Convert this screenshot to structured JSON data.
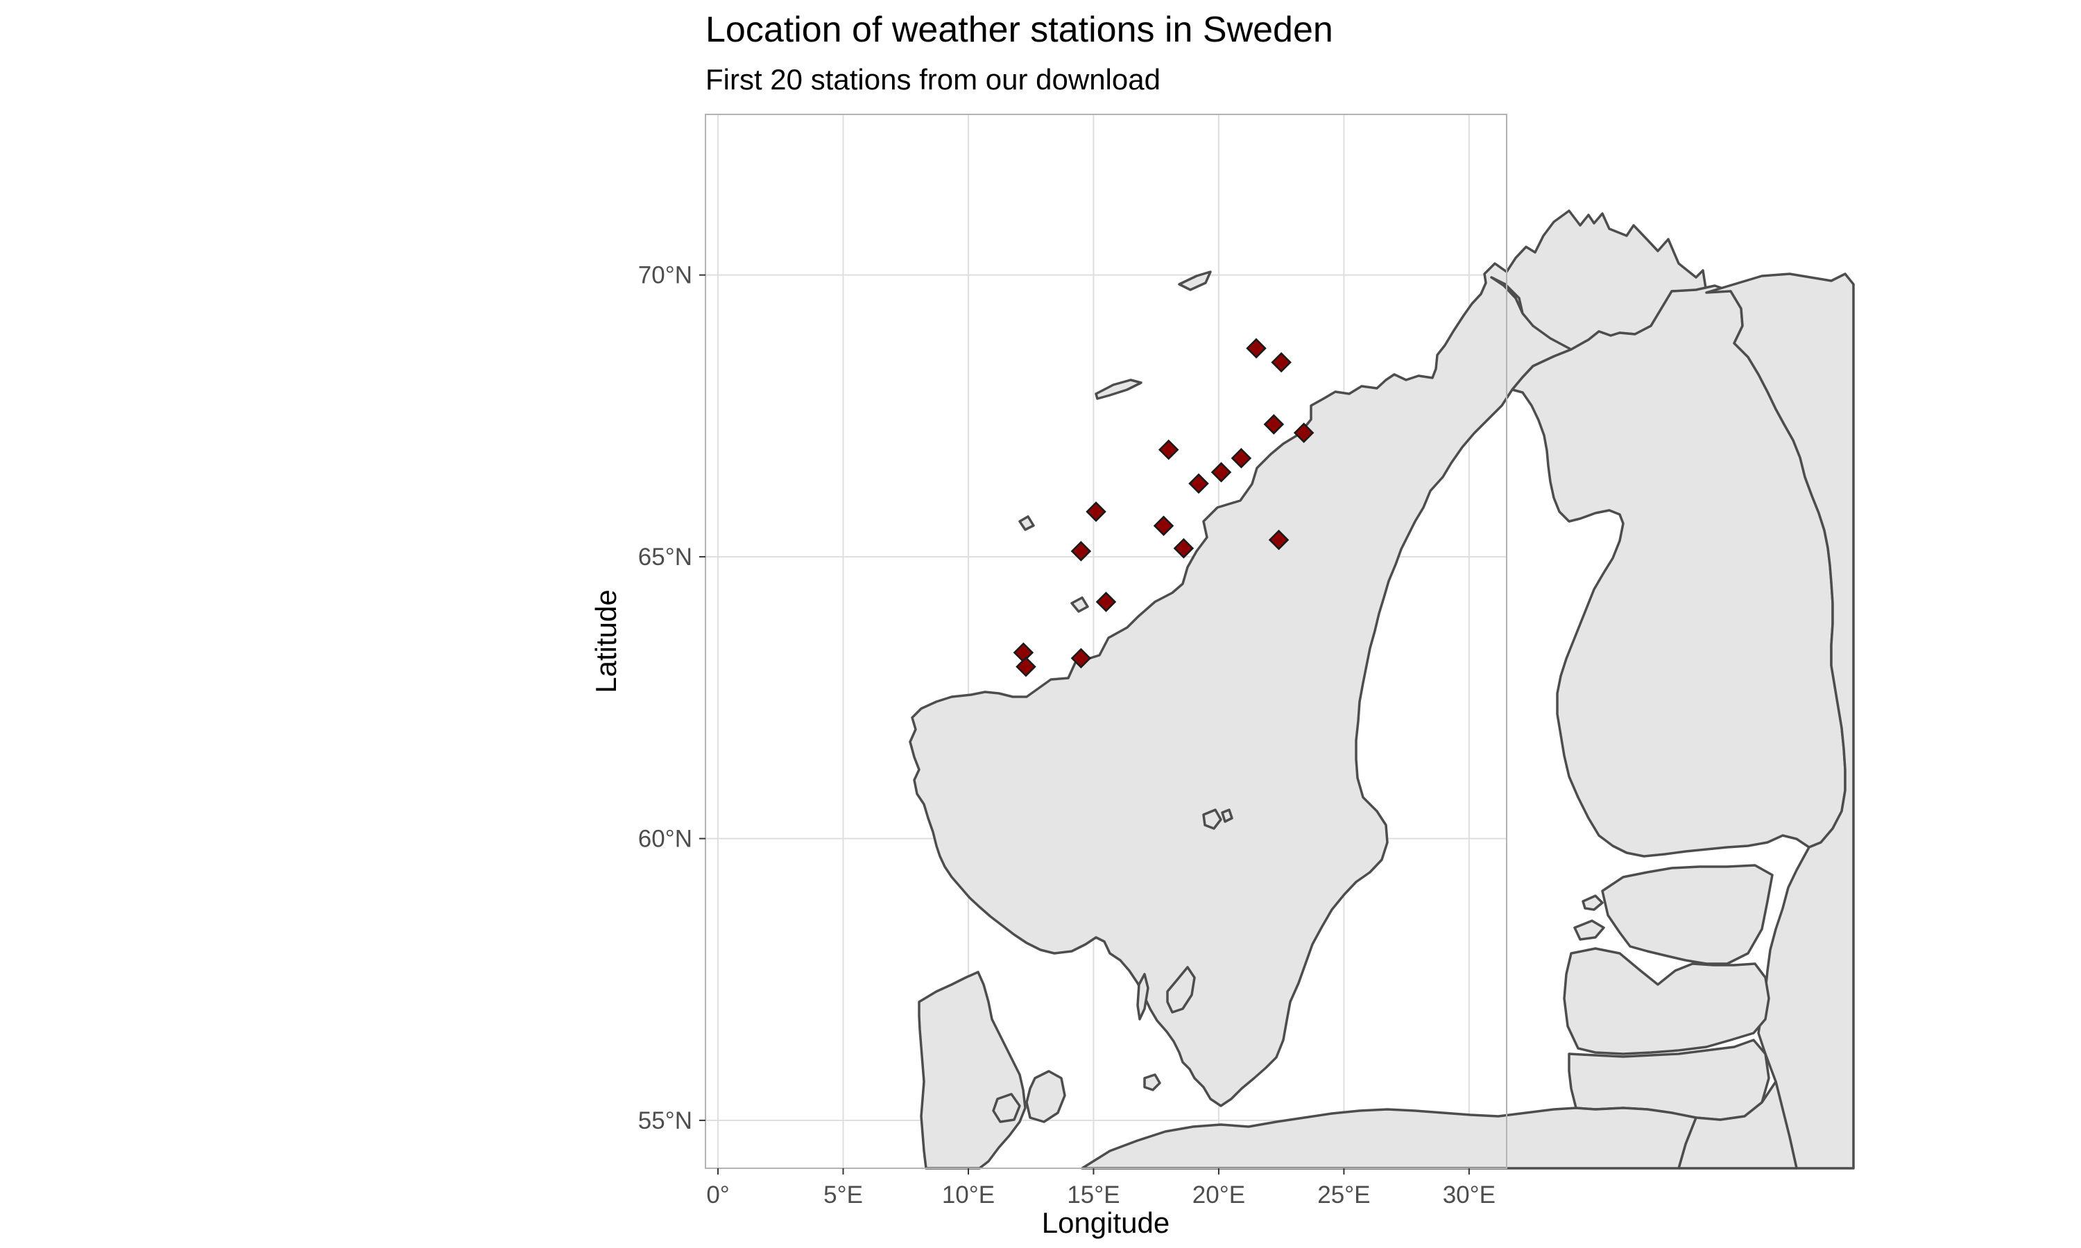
{
  "title": "Location of weather stations in Sweden",
  "subtitle": "First 20 stations from our download",
  "chart_data": {
    "type": "scatter",
    "projection": "geographic (longitude/latitude)",
    "xlabel": "Longitude",
    "ylabel": "Latitude",
    "xlim": [
      -0.5,
      31.5
    ],
    "ylim": [
      54.15,
      72.85
    ],
    "x_ticks": [
      {
        "value": 0,
        "label": "0°"
      },
      {
        "value": 5,
        "label": "5°E"
      },
      {
        "value": 10,
        "label": "10°E"
      },
      {
        "value": 15,
        "label": "15°E"
      },
      {
        "value": 20,
        "label": "20°E"
      },
      {
        "value": 25,
        "label": "25°E"
      },
      {
        "value": 30,
        "label": "30°E"
      }
    ],
    "y_ticks": [
      {
        "value": 55,
        "label": "55°N"
      },
      {
        "value": 60,
        "label": "60°N"
      },
      {
        "value": 65,
        "label": "65°N"
      },
      {
        "value": 70,
        "label": "70°N"
      }
    ],
    "grid": true,
    "basemap": "land fill #e5e5e5 with dark grey country borders (Norway, Sweden, Finland, Denmark, Baltics, Russia)",
    "marker": {
      "shape": "diamond",
      "fill": "#8b0000",
      "stroke": "#1a1a1a"
    },
    "points": [
      {
        "lon": 21.5,
        "lat": 68.7
      },
      {
        "lon": 22.5,
        "lat": 68.45
      },
      {
        "lon": 22.2,
        "lat": 67.35
      },
      {
        "lon": 23.4,
        "lat": 67.2
      },
      {
        "lon": 18.0,
        "lat": 66.9
      },
      {
        "lon": 20.9,
        "lat": 66.75
      },
      {
        "lon": 20.1,
        "lat": 66.5
      },
      {
        "lon": 19.2,
        "lat": 66.3
      },
      {
        "lon": 15.1,
        "lat": 65.8
      },
      {
        "lon": 17.8,
        "lat": 65.55
      },
      {
        "lon": 22.4,
        "lat": 65.3
      },
      {
        "lon": 18.6,
        "lat": 65.15
      },
      {
        "lon": 14.5,
        "lat": 65.1
      },
      {
        "lon": 15.5,
        "lat": 64.2
      },
      {
        "lon": 12.2,
        "lat": 63.3
      },
      {
        "lon": 12.3,
        "lat": 63.05
      },
      {
        "lon": 14.5,
        "lat": 63.2
      }
    ]
  }
}
